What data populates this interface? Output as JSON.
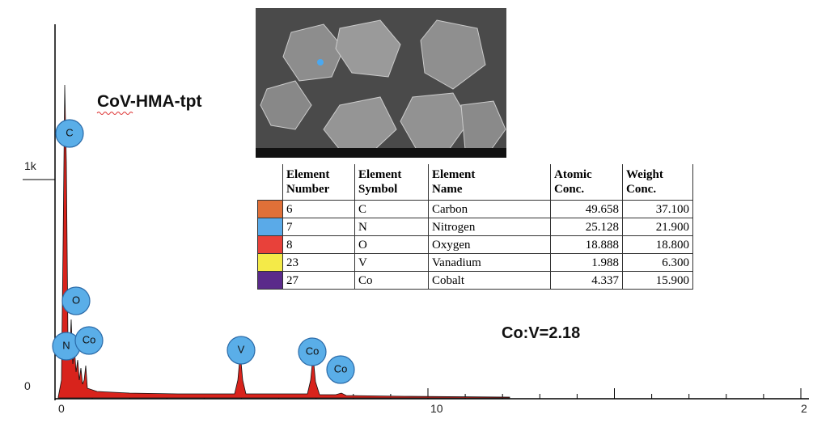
{
  "sample": "CoV-HMA-tpt",
  "ratio": "Co:V=2.18",
  "y_axis_labels": [
    "1k",
    "0"
  ],
  "x_axis_labels": [
    "0",
    "10",
    "2"
  ],
  "peaks": [
    "C",
    "O",
    "N",
    "Co",
    "V",
    "Co",
    "Co"
  ],
  "table": {
    "headers": [
      [
        "Element",
        "Number"
      ],
      [
        "Element",
        "Symbol"
      ],
      [
        "Element",
        "Name"
      ],
      [
        "Atomic",
        "Conc."
      ],
      [
        "Weight",
        "Conc."
      ]
    ],
    "rows": [
      {
        "color": "#e07038",
        "cells": [
          "6",
          "C",
          "Carbon",
          "49.658",
          "37.100"
        ]
      },
      {
        "color": "#5aaae8",
        "cells": [
          "7",
          "N",
          "Nitrogen",
          "25.128",
          "21.900"
        ]
      },
      {
        "color": "#e8413a",
        "cells": [
          "8",
          "O",
          "Oxygen",
          "18.888",
          "18.800"
        ]
      },
      {
        "color": "#f4ea48",
        "cells": [
          "23",
          "V",
          "Vanadium",
          "1.988",
          "6.300"
        ]
      },
      {
        "color": "#5a2a8a",
        "cells": [
          "27",
          "Co",
          "Cobalt",
          "4.337",
          "15.900"
        ]
      }
    ]
  }
}
